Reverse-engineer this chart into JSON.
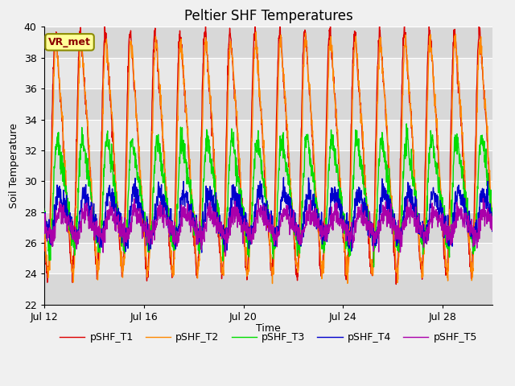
{
  "title": "Peltier SHF Temperatures",
  "ylabel": "Soil Temperature",
  "xlabel": "Time",
  "annotation": "VR_met",
  "ylim": [
    22,
    40
  ],
  "yticks": [
    22,
    24,
    26,
    28,
    30,
    32,
    34,
    36,
    38,
    40
  ],
  "xtick_labels": [
    "Jul 12",
    "Jul 16",
    "Jul 20",
    "Jul 24",
    "Jul 28"
  ],
  "xtick_positions": [
    0,
    4,
    8,
    12,
    16
  ],
  "series_names": [
    "pSHF_T1",
    "pSHF_T2",
    "pSHF_T3",
    "pSHF_T4",
    "pSHF_T5"
  ],
  "colors": [
    "#dd0000",
    "#ff8800",
    "#00dd00",
    "#0000cc",
    "#aa00aa"
  ],
  "amplitudes": [
    7.8,
    7.5,
    3.5,
    1.5,
    0.8
  ],
  "bases": [
    31.8,
    31.5,
    29.2,
    27.8,
    27.2
  ],
  "phases": [
    0.0,
    0.03,
    0.08,
    0.15,
    0.18
  ],
  "noises": [
    0.3,
    0.3,
    0.4,
    0.4,
    0.35
  ],
  "days": 18,
  "points_per_day": 96,
  "plot_bg_color": "#e8e8e8",
  "band_bg_color": "#d8d8d8",
  "fig_bg_color": "#f0f0f0",
  "grid_color": "#ffffff",
  "linewidth": 1.0,
  "title_fontsize": 12,
  "label_fontsize": 9,
  "tick_fontsize": 9,
  "legend_fontsize": 9,
  "figsize": [
    6.4,
    4.8
  ],
  "dpi": 100
}
